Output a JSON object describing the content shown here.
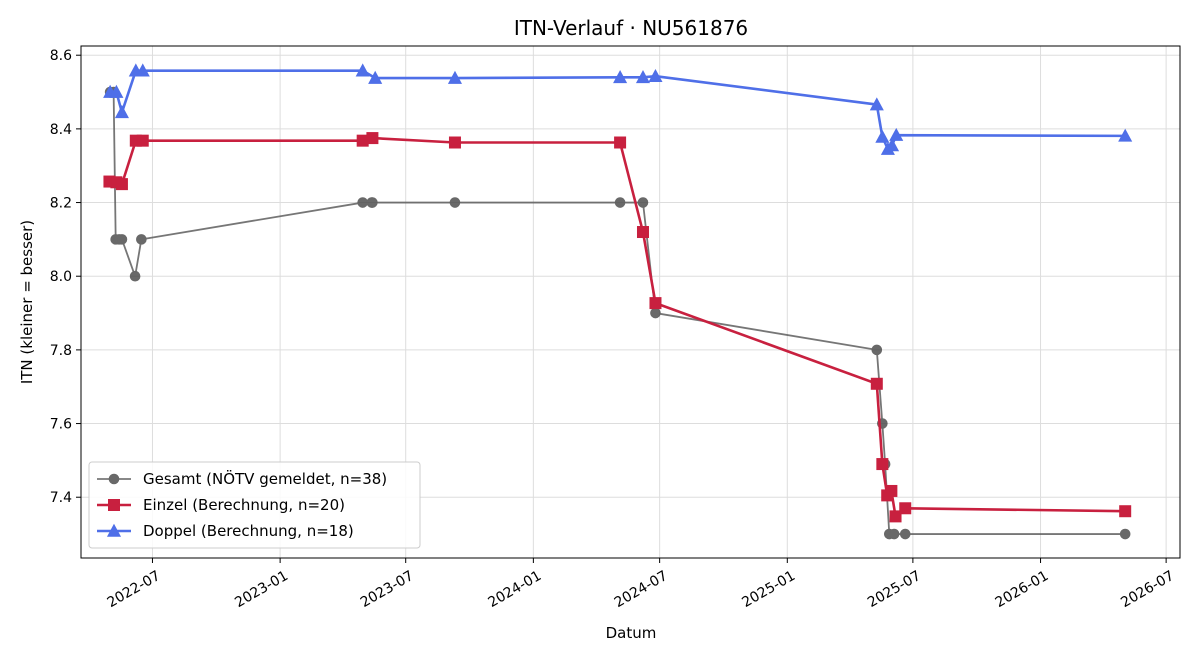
{
  "chart_data": {
    "type": "line",
    "title": "ITN-Verlauf · NU561876",
    "xlabel": "Datum",
    "ylabel": "ITN  (kleiner = besser)",
    "ylim": [
      7.235,
      8.625
    ],
    "xlim": [
      "2022-03-20",
      "2026-07-21"
    ],
    "yticks": [
      7.4,
      7.6,
      7.8,
      8.0,
      8.2,
      8.4,
      8.6
    ],
    "ytick_labels": [
      "7.4",
      "7.6",
      "7.8",
      "8.0",
      "8.2",
      "8.4",
      "8.6"
    ],
    "xticks": [
      "2022-07-01",
      "2023-01-01",
      "2023-07-01",
      "2024-01-01",
      "2024-07-01",
      "2025-01-01",
      "2025-07-01",
      "2026-01-01",
      "2026-07-01"
    ],
    "xtick_labels": [
      "2022-07",
      "2023-01",
      "2023-07",
      "2024-01",
      "2024-07",
      "2025-01",
      "2025-07",
      "2026-01",
      "2026-07"
    ],
    "grid": true,
    "legend_position": "lower-left",
    "series": [
      {
        "name": "Gesamt (NÖTV gemeldet, n=38)",
        "color": "#555555",
        "marker": "circle",
        "points": [
          {
            "x": "2022-05-01",
            "y": 8.5
          },
          {
            "x": "2022-05-06",
            "y": 8.5
          },
          {
            "x": "2022-05-09",
            "y": 8.1
          },
          {
            "x": "2022-05-14",
            "y": 8.1
          },
          {
            "x": "2022-05-18",
            "y": 8.1
          },
          {
            "x": "2022-06-06",
            "y": 8.0
          },
          {
            "x": "2022-06-15",
            "y": 8.1
          },
          {
            "x": "2023-04-30",
            "y": 8.2
          },
          {
            "x": "2023-05-13",
            "y": 8.2
          },
          {
            "x": "2023-05-14",
            "y": 8.2
          },
          {
            "x": "2023-09-10",
            "y": 8.2
          },
          {
            "x": "2024-05-05",
            "y": 8.2
          },
          {
            "x": "2024-06-07",
            "y": 8.2
          },
          {
            "x": "2024-06-25",
            "y": 7.9
          },
          {
            "x": "2025-05-10",
            "y": 7.8
          },
          {
            "x": "2025-05-18",
            "y": 7.6
          },
          {
            "x": "2025-05-22",
            "y": 7.49
          },
          {
            "x": "2025-05-28",
            "y": 7.3
          },
          {
            "x": "2025-06-04",
            "y": 7.3
          },
          {
            "x": "2025-06-20",
            "y": 7.3
          },
          {
            "x": "2026-05-03",
            "y": 7.3
          }
        ]
      },
      {
        "name": "Einzel (Berechnung, n=20)",
        "color": "#c8203f",
        "marker": "square",
        "points": [
          {
            "x": "2022-04-30",
            "y": 8.257
          },
          {
            "x": "2022-05-10",
            "y": 8.255
          },
          {
            "x": "2022-05-18",
            "y": 8.25
          },
          {
            "x": "2022-06-07",
            "y": 8.368
          },
          {
            "x": "2022-06-17",
            "y": 8.368
          },
          {
            "x": "2023-04-30",
            "y": 8.368
          },
          {
            "x": "2023-05-14",
            "y": 8.375
          },
          {
            "x": "2023-09-10",
            "y": 8.363
          },
          {
            "x": "2024-05-05",
            "y": 8.363
          },
          {
            "x": "2024-06-07",
            "y": 8.12
          },
          {
            "x": "2024-06-25",
            "y": 7.927
          },
          {
            "x": "2025-05-10",
            "y": 7.708
          },
          {
            "x": "2025-05-18",
            "y": 7.49
          },
          {
            "x": "2025-05-25",
            "y": 7.405
          },
          {
            "x": "2025-05-31",
            "y": 7.417
          },
          {
            "x": "2025-06-06",
            "y": 7.348
          },
          {
            "x": "2025-06-20",
            "y": 7.37
          },
          {
            "x": "2026-05-03",
            "y": 7.362
          }
        ]
      },
      {
        "name": "Doppel (Berechnung, n=18)",
        "color": "#4f6fe8",
        "marker": "triangle",
        "points": [
          {
            "x": "2022-05-01",
            "y": 8.5
          },
          {
            "x": "2022-05-10",
            "y": 8.5
          },
          {
            "x": "2022-05-18",
            "y": 8.445
          },
          {
            "x": "2022-06-07",
            "y": 8.558
          },
          {
            "x": "2022-06-17",
            "y": 8.558
          },
          {
            "x": "2023-04-30",
            "y": 8.558
          },
          {
            "x": "2023-05-18",
            "y": 8.538
          },
          {
            "x": "2023-09-10",
            "y": 8.538
          },
          {
            "x": "2024-05-05",
            "y": 8.54
          },
          {
            "x": "2024-06-07",
            "y": 8.54
          },
          {
            "x": "2024-06-25",
            "y": 8.543
          },
          {
            "x": "2025-05-10",
            "y": 8.466
          },
          {
            "x": "2025-05-18",
            "y": 8.378
          },
          {
            "x": "2025-05-26",
            "y": 8.345
          },
          {
            "x": "2025-06-01",
            "y": 8.355
          },
          {
            "x": "2025-06-07",
            "y": 8.383
          },
          {
            "x": "2026-05-03",
            "y": 8.381
          }
        ]
      }
    ]
  }
}
